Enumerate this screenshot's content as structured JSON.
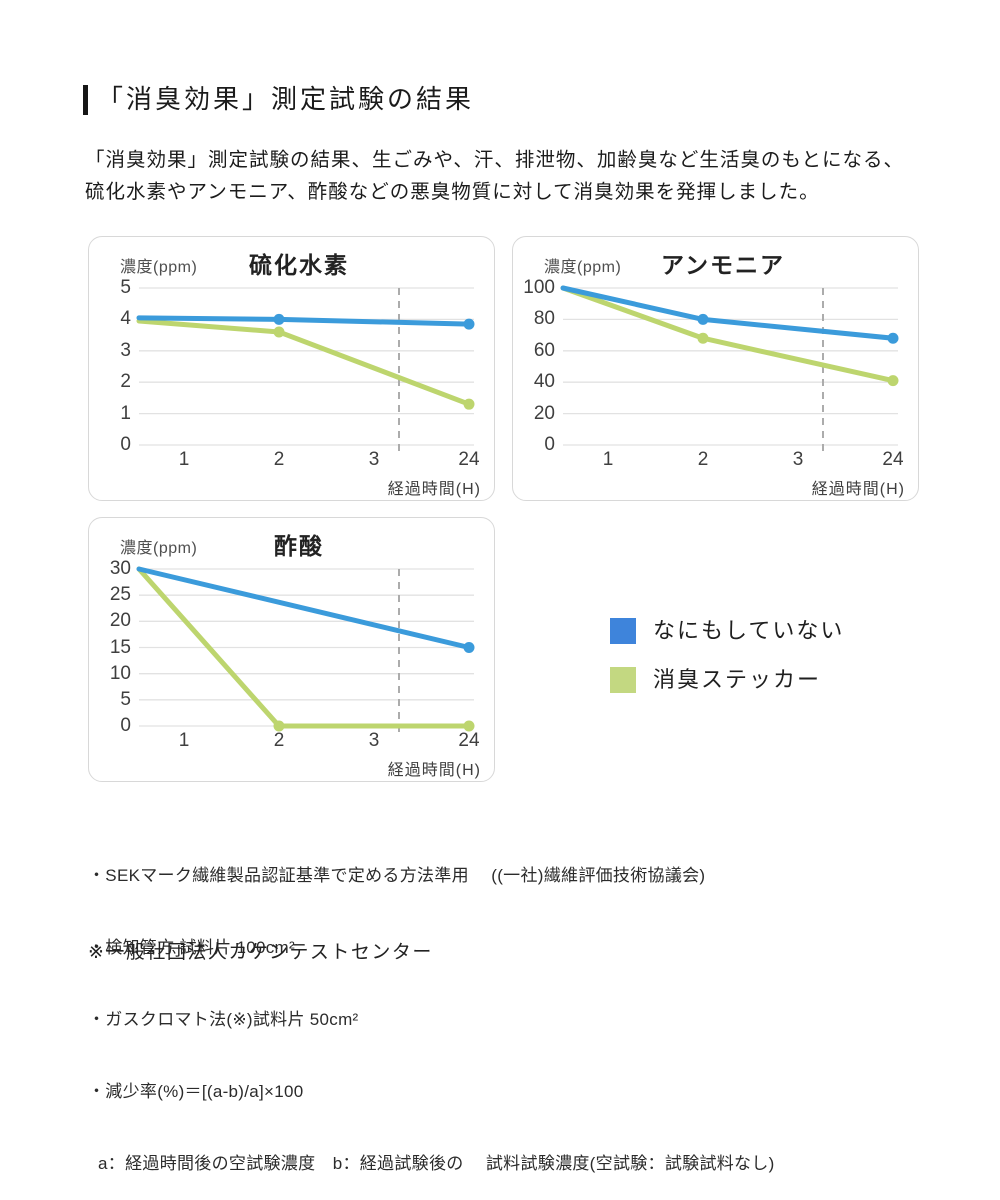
{
  "header": {
    "title": "「消臭効果」測定試験の結果"
  },
  "intro": {
    "lines": [
      "「消臭効果」測定試験の結果、生ごみや、汗、排泄物、加齢臭など生活臭のもとになる、",
      "硫化水素やアンモニア、酢酸などの悪臭物質に対して消臭効果を発揮しました。"
    ]
  },
  "legend": {
    "items": [
      {
        "label": "なにもしていない",
        "color": "#3E84DB"
      },
      {
        "label": "消臭ステッカー",
        "color": "#C3D881"
      }
    ]
  },
  "colors": {
    "line_blue": "#3B9BDB",
    "line_green": "#BDD56E",
    "grid": "#E2E2E2",
    "dashed_line": "#ACACAC"
  },
  "chart_data": [
    {
      "type": "line",
      "title": "硫化水素",
      "ylabel": "濃度(ppm)",
      "xlabel": "経過時間(H)",
      "x_tick_labels": [
        "1",
        "2",
        "3",
        "24"
      ],
      "y_ticks": [
        0,
        1,
        2,
        3,
        4,
        5
      ],
      "ylim": [
        0,
        5
      ],
      "grid": true,
      "dashed_vertical_line_between": [
        3,
        24
      ],
      "series": [
        {
          "name": "なにもしていない",
          "color": "#3B9BDB",
          "points": [
            {
              "x": 0,
              "y": 4.05
            },
            {
              "x": 2,
              "y": 4.0,
              "dot": true
            },
            {
              "x": 24,
              "y": 3.85,
              "dot": true
            }
          ]
        },
        {
          "name": "消臭ステッカー",
          "color": "#BDD56E",
          "points": [
            {
              "x": 0,
              "y": 3.95
            },
            {
              "x": 2,
              "y": 3.6,
              "dot": true
            },
            {
              "x": 24,
              "y": 1.3,
              "dot": true
            }
          ]
        }
      ]
    },
    {
      "type": "line",
      "title": "アンモニア",
      "ylabel": "濃度(ppm)",
      "xlabel": "経過時間(H)",
      "x_tick_labels": [
        "1",
        "2",
        "3",
        "24"
      ],
      "y_ticks": [
        0,
        20,
        40,
        60,
        80,
        100
      ],
      "ylim": [
        0,
        100
      ],
      "grid": true,
      "dashed_vertical_line_between": [
        3,
        24
      ],
      "series": [
        {
          "name": "なにもしていない",
          "color": "#3B9BDB",
          "points": [
            {
              "x": 0,
              "y": 100
            },
            {
              "x": 2,
              "y": 80,
              "dot": true
            },
            {
              "x": 24,
              "y": 68,
              "dot": true
            }
          ]
        },
        {
          "name": "消臭ステッカー",
          "color": "#BDD56E",
          "points": [
            {
              "x": 0,
              "y": 100
            },
            {
              "x": 2,
              "y": 68,
              "dot": true
            },
            {
              "x": 24,
              "y": 41,
              "dot": true
            }
          ]
        }
      ]
    },
    {
      "type": "line",
      "title": "酢酸",
      "ylabel": "濃度(ppm)",
      "xlabel": "経過時間(H)",
      "x_tick_labels": [
        "1",
        "2",
        "3",
        "24"
      ],
      "y_ticks": [
        0,
        5,
        10,
        15,
        20,
        25,
        30
      ],
      "ylim": [
        0,
        30
      ],
      "grid": true,
      "dashed_vertical_line_between": [
        3,
        24
      ],
      "series": [
        {
          "name": "なにもしていない",
          "color": "#3B9BDB",
          "points": [
            {
              "x": 0,
              "y": 30
            },
            {
              "x": 24,
              "y": 15,
              "dot": true
            }
          ]
        },
        {
          "name": "消臭ステッカー",
          "color": "#BDD56E",
          "points": [
            {
              "x": 0,
              "y": 30
            },
            {
              "x": 2,
              "y": 0,
              "dot": true
            },
            {
              "x": 24,
              "y": 0,
              "dot": true
            }
          ]
        }
      ]
    }
  ],
  "footnotes": {
    "lines": [
      "・SEKマーク繊維製品認証基準で定める方法準用　 ((一社)繊維評価技術協議会)",
      "・検知管方 試料片 100cm²",
      "・ガスクロマト法(※)試料片 50cm²",
      "・減少率(%)＝[(a-b)/a]×100",
      "  a：経過時間後の空試験濃度　b：経過試験後の　 試料試験濃度(空試験：試験試料なし)"
    ],
    "source": "※一般社団法人カケンテストセンター"
  }
}
